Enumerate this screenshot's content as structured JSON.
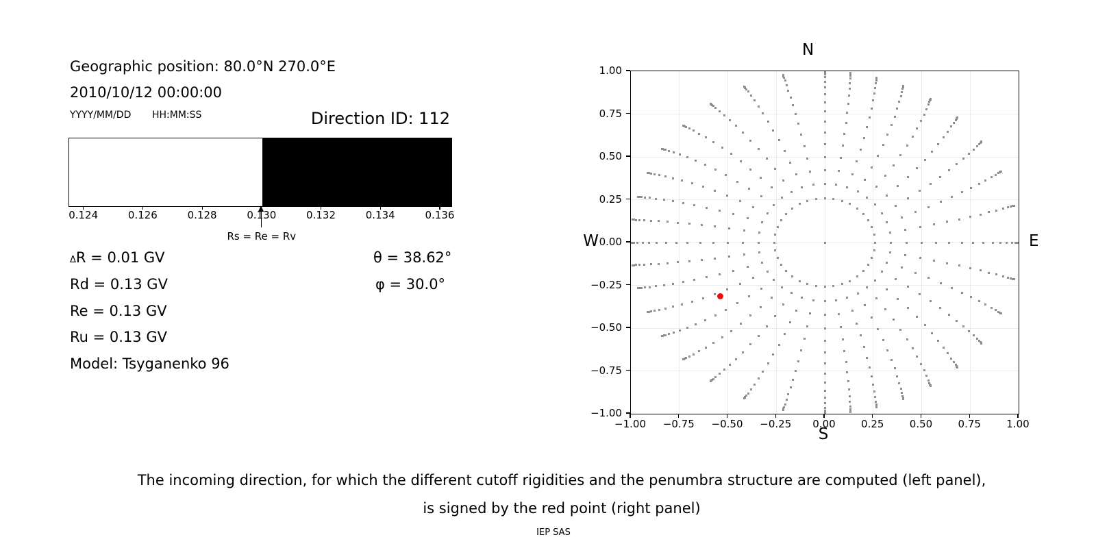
{
  "left_panel": {
    "geo_position": "Geographic position: 80.0°N 270.0°E",
    "datetime": "2010/10/12 00:00:00",
    "date_format_label": "YYYY/MM/DD",
    "time_format_label": "HH:MM:SS",
    "direction_id_label": "Direction ID: 112",
    "values": {
      "delta_symbol": "Δ",
      "delta_rest": "R = 0.01 GV",
      "rd": "Rd = 0.13 GV",
      "re": "Re = 0.13 GV",
      "ru": "Ru = 0.13 GV",
      "model": "Model: Tsyganenko 96",
      "theta": "θ = 38.62°",
      "phi": "φ = 30.0°"
    }
  },
  "caption": {
    "line1": "The incoming direction, for which the different cutoff rigidities and the penumbra structure are computed (left panel),",
    "line2": "is signed by the red point (right panel)",
    "credit": "IEP SAS"
  },
  "chart_data": [
    {
      "type": "penumbra-bar",
      "title": "",
      "xlabel": "",
      "xlim": [
        0.1235,
        0.13637
      ],
      "tick_values": [
        0.124,
        0.126,
        0.128,
        0.13,
        0.132,
        0.134,
        0.136
      ],
      "tick_labels": [
        "0.124",
        "0.126",
        "0.128",
        "0.130",
        "0.132",
        "0.134",
        "0.136"
      ],
      "allowed_range": [
        0.1235,
        0.13
      ],
      "forbidden_range": [
        0.13,
        0.13637
      ],
      "allowed_color": "#ffffff",
      "forbidden_color": "#000000",
      "arrow_value": 0.13,
      "arrow_label": "Rs = Re = Rv"
    },
    {
      "type": "scatter",
      "title_top": "N",
      "label_bottom": "S",
      "label_left": "W",
      "label_right": "E",
      "xlim": [
        -1.0,
        1.0
      ],
      "ylim": [
        -1.0,
        1.0
      ],
      "grid": true,
      "grid_step": 0.25,
      "x_tick_labels": [
        "−1.00",
        "−0.75",
        "−0.50",
        "−0.25",
        "0.00",
        "0.25",
        "0.50",
        "0.75",
        "1.00"
      ],
      "y_tick_labels": [
        "1.00",
        "0.75",
        "0.50",
        "0.25",
        "0.00",
        "−0.25",
        "−0.50",
        "−0.75",
        "−1.00"
      ],
      "series": [
        {
          "name": "computed-direction-grid",
          "marker": "square",
          "color": "#8f8f8f",
          "generator": {
            "azimuth_start_deg": 0,
            "azimuth_step_deg": 10,
            "azimuth_count": 36,
            "zenith_angles_deg": [
              15,
              20,
              25,
              30,
              35,
              40,
              45,
              50,
              55,
              60,
              65,
              70,
              75,
              79.5,
              83,
              85.5,
              87.3,
              88.6,
              89.5
            ],
            "radius_rule": "r = sin(zenith)",
            "tip_twist_max_deg": 7,
            "twist_rule": "azimuth drifts by tip_twist_max*|sin(2*az0)|*sign(180-az0)*((r-0.259)/0.741)^1.6, zero on N/S/E/W spokes",
            "center_point": [
              0,
              0
            ]
          }
        },
        {
          "name": "selected-direction",
          "marker": "circle",
          "color": "#ef0d0d",
          "points": [
            [
              -0.54,
              -0.312
            ]
          ],
          "theta_deg": 38.62,
          "phi_deg": 30.0,
          "direction_id": 112
        }
      ]
    }
  ]
}
